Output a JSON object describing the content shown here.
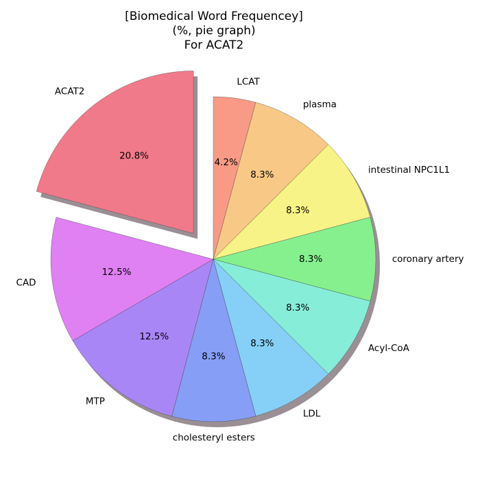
{
  "chart_data": {
    "type": "pie",
    "title_lines": [
      "[Biomedical Word Frequencey]",
      "(%, pie graph)",
      "For ACAT2"
    ],
    "slices": [
      {
        "label": "LCAT",
        "value": 4.2,
        "pct_label": "4.2%",
        "color": "#F99A86",
        "explode": 0
      },
      {
        "label": "plasma",
        "value": 8.3,
        "pct_label": "8.3%",
        "color": "#F8C886",
        "explode": 0
      },
      {
        "label": "intestinal NPC1L1",
        "value": 8.3,
        "pct_label": "8.3%",
        "color": "#F8F386",
        "explode": 0
      },
      {
        "label": "coronary artery",
        "value": 8.3,
        "pct_label": "8.3%",
        "color": "#86F08F",
        "explode": 0
      },
      {
        "label": "Acyl-CoA",
        "value": 8.3,
        "pct_label": "8.3%",
        "color": "#86EDD9",
        "explode": 0
      },
      {
        "label": "LDL",
        "value": 8.3,
        "pct_label": "8.3%",
        "color": "#86CFF6",
        "explode": 0
      },
      {
        "label": "cholesteryl esters",
        "value": 8.3,
        "pct_label": "8.3%",
        "color": "#869EF6",
        "explode": 0
      },
      {
        "label": "MTP",
        "value": 12.5,
        "pct_label": "12.5%",
        "color": "#A986F6",
        "explode": 0
      },
      {
        "label": "CAD",
        "value": 12.5,
        "pct_label": "12.5%",
        "color": "#DF80F3",
        "explode": 0
      },
      {
        "label": "ACAT2",
        "value": 20.8,
        "pct_label": "20.8%",
        "color": "#F07A8A",
        "explode": 0.2
      }
    ],
    "start_angle_deg": 90,
    "direction": "clockwise",
    "shadow": true
  }
}
